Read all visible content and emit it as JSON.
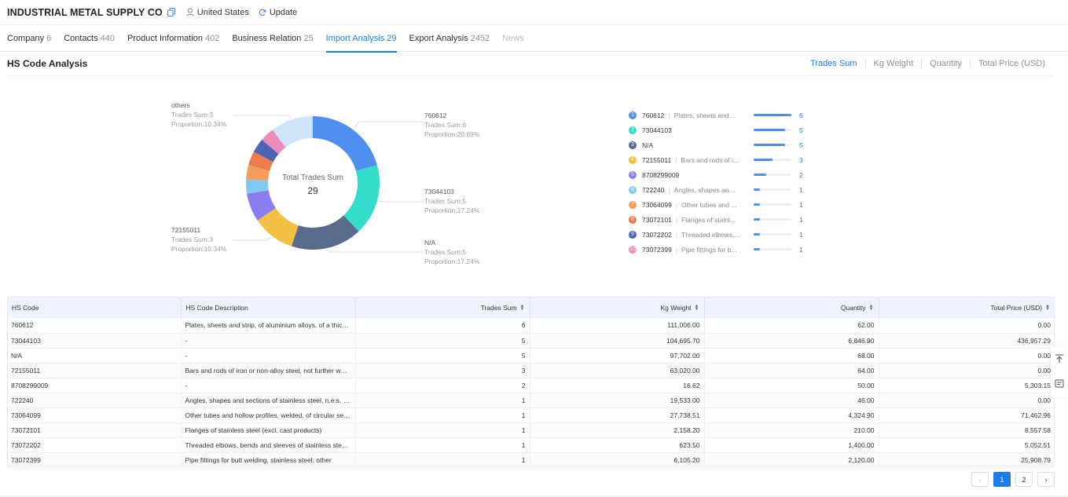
{
  "header": {
    "company_name": "INDUSTRIAL METAL SUPPLY CO",
    "country": "United States",
    "update_label": "Update"
  },
  "tabs": [
    {
      "label": "Company",
      "count": "6"
    },
    {
      "label": "Contacts",
      "count": "440"
    },
    {
      "label": "Product Information",
      "count": "402"
    },
    {
      "label": "Business Relation",
      "count": "25"
    },
    {
      "label": "Import Analysis",
      "count": "29",
      "active": true
    },
    {
      "label": "Export Analysis",
      "count": "2452"
    },
    {
      "label": "News",
      "count": ""
    }
  ],
  "section": {
    "title": "HS Code Analysis",
    "metrics": [
      "Trades Sum",
      "Kg Weight",
      "Quantity",
      "Total Price (USD)"
    ],
    "active_metric": "Trades Sum"
  },
  "donut": {
    "center_label": "Total Trades Sum",
    "center_value": "29",
    "callouts": [
      {
        "name": "760612",
        "line1": "Trades Sum:6",
        "line2": "Proportion:20.69%"
      },
      {
        "name": "73044103",
        "line1": "Trades Sum:5",
        "line2": "Proportion:17.24%"
      },
      {
        "name": "N/A",
        "line1": "Trades Sum:5",
        "line2": "Proportion:17.24%"
      },
      {
        "name": "72155011",
        "line1": "Trades Sum:3",
        "line2": "Proportion:10.34%"
      },
      {
        "name": "others",
        "line1": "Trades Sum:3",
        "line2": "Proportion:10.34%"
      }
    ]
  },
  "chart_data": {
    "type": "pie",
    "title": "",
    "center_text": "Total Trades Sum",
    "total": 29,
    "slices": [
      {
        "label": "760612",
        "value": 6,
        "color": "#4f8ff0"
      },
      {
        "label": "73044103",
        "value": 5,
        "color": "#36dccb"
      },
      {
        "label": "N/A",
        "value": 5,
        "color": "#5b6b8c"
      },
      {
        "label": "72155011",
        "value": 3,
        "color": "#f2c144"
      },
      {
        "label": "8708299009",
        "value": 2,
        "color": "#8b7cf0"
      },
      {
        "label": "722240",
        "value": 1,
        "color": "#82c8f5"
      },
      {
        "label": "73064099",
        "value": 1,
        "color": "#f59e5b"
      },
      {
        "label": "73072101",
        "value": 1,
        "color": "#ef7b4b"
      },
      {
        "label": "73072202",
        "value": 1,
        "color": "#4d64b3"
      },
      {
        "label": "73072399",
        "value": 1,
        "color": "#ec8ab9"
      },
      {
        "label": "others",
        "value": 3,
        "color": "#cfe3fa"
      }
    ]
  },
  "ranking": [
    {
      "rank": "1",
      "code": "760612",
      "desc": "Plates, sheets and s...",
      "value": "6",
      "share": 1.0,
      "color": "#4f8ff0"
    },
    {
      "rank": "2",
      "code": "73044103",
      "desc": "",
      "value": "5",
      "share": 0.83,
      "color": "#36dccb"
    },
    {
      "rank": "3",
      "code": "N/A",
      "desc": "",
      "value": "5",
      "share": 0.83,
      "color": "#5b6b8c"
    },
    {
      "rank": "4",
      "code": "72155011",
      "desc": "Bars and rods of i...",
      "value": "3",
      "share": 0.5,
      "color": "#f2c144"
    },
    {
      "rank": "5",
      "code": "8708299009",
      "desc": "",
      "value": "2",
      "share": 0.33,
      "color": "#8b7cf0"
    },
    {
      "rank": "6",
      "code": "722240",
      "desc": "Angles, shapes and ...",
      "value": "1",
      "share": 0.17,
      "color": "#82c8f5"
    },
    {
      "rank": "7",
      "code": "73064099",
      "desc": "Other tubes and ...",
      "value": "1",
      "share": 0.17,
      "color": "#f59e5b"
    },
    {
      "rank": "8",
      "code": "73072101",
      "desc": "Flanges of stainl...",
      "value": "1",
      "share": 0.17,
      "color": "#ef7b4b"
    },
    {
      "rank": "9",
      "code": "73072202",
      "desc": "Threaded elbows,...",
      "value": "1",
      "share": 0.17,
      "color": "#4d64b3"
    },
    {
      "rank": "10",
      "code": "73072399",
      "desc": "Pipe fittings for b...",
      "value": "1",
      "share": 0.17,
      "color": "#ec8ab9"
    }
  ],
  "table": {
    "headers": [
      "HS Code",
      "HS Code Description",
      "Trades Sum",
      "Kg Weight",
      "Quantity",
      "Total Price (USD)"
    ],
    "rows": [
      [
        "760612",
        "Plates, sheets and strip, of aluminium alloys, of a thickne...",
        "6",
        "111,006.00",
        "62.00",
        "0.00"
      ],
      [
        "73044103",
        "-",
        "5",
        "104,695.70",
        "6,846.90",
        "436,957.29"
      ],
      [
        "N/A",
        "-",
        "5",
        "97,702.00",
        "68.00",
        "0.00"
      ],
      [
        "72155011",
        "Bars and rods of iron or non-alloy steel, not further work...",
        "3",
        "63,020.00",
        "64.00",
        "0.00"
      ],
      [
        "8708299009",
        "-",
        "2",
        "16.62",
        "50.00",
        "5,303.15"
      ],
      [
        "722240",
        "Angles, shapes and sections of stainless steel, n.e.s. (ex...",
        "1",
        "19,533.00",
        "46.00",
        "0.00"
      ],
      [
        "73064099",
        "Other tubes and hollow profiles, welded, of circular secti...",
        "1",
        "27,738.51",
        "4,324.90",
        "71,462.96"
      ],
      [
        "73072101",
        "Flanges of stainless steel (excl. cast products)",
        "1",
        "2,158.20",
        "210.00",
        "8,557.58"
      ],
      [
        "73072202",
        "Threaded elbows, bends and sleeves of stainless steel (e...",
        "1",
        "623.50",
        "1,400.00",
        "5,052.51"
      ],
      [
        "73072399",
        "Pipe fittings for butt welding, stainless steel: other",
        "1",
        "6,105.20",
        "2,120.00",
        "25,908.79"
      ]
    ]
  },
  "pagination": {
    "prev": "‹",
    "pages": [
      "1",
      "2"
    ],
    "current": "1",
    "next": "›"
  },
  "icons": {
    "copy": "copy-icon",
    "location": "location-icon",
    "refresh": "refresh-icon",
    "back_to_top": "back-to-top-icon",
    "feedback": "feedback-icon"
  }
}
